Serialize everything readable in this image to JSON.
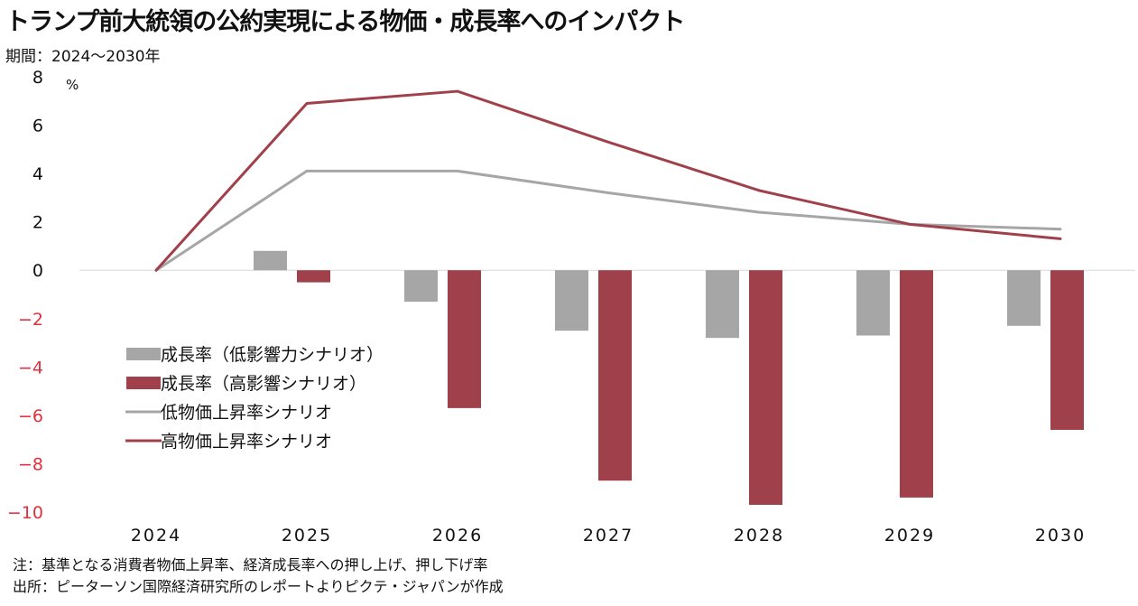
{
  "title": "トランプ前大統領の公約実現による物価・成長率へのインパクト",
  "subtitle": "期間：2024～2030年",
  "notes": [
    "注：基準となる消費者物価上昇率、経済成長率への押し上げ、押し下げ率",
    "出所：ピーターソン国際経済研究所のレポートよりピクテ・ジャパンが作成"
  ],
  "chart_data": {
    "type": "bar+line",
    "categories": [
      "2024",
      "2025",
      "2026",
      "2027",
      "2028",
      "2029",
      "2030"
    ],
    "y_unit": "%",
    "ylim": [
      -10,
      8
    ],
    "yticks": [
      8,
      6,
      4,
      2,
      0,
      -2,
      -4,
      -6,
      -8,
      -10
    ],
    "negative_tick_color": "#e0303c",
    "legend_position": "center-left",
    "series": [
      {
        "name": "成長率（低影響力シナリオ）",
        "kind": "bar",
        "color": "#a6a6a6",
        "values": [
          0,
          0.8,
          -1.3,
          -2.5,
          -2.8,
          -2.7,
          -2.3
        ]
      },
      {
        "name": "成長率（高影響シナリオ）",
        "kind": "bar",
        "color": "#a0404a",
        "values": [
          0,
          -0.5,
          -5.7,
          -8.7,
          -9.7,
          -9.4,
          -6.6
        ]
      },
      {
        "name": "低物価上昇率シナリオ",
        "kind": "line",
        "color": "#a6a6a6",
        "values": [
          0,
          4.1,
          4.1,
          3.2,
          2.4,
          1.9,
          1.7
        ]
      },
      {
        "name": "高物価上昇率シナリオ",
        "kind": "line",
        "color": "#a0404a",
        "values": [
          0,
          6.9,
          7.4,
          5.3,
          3.3,
          1.9,
          1.3
        ]
      }
    ]
  }
}
